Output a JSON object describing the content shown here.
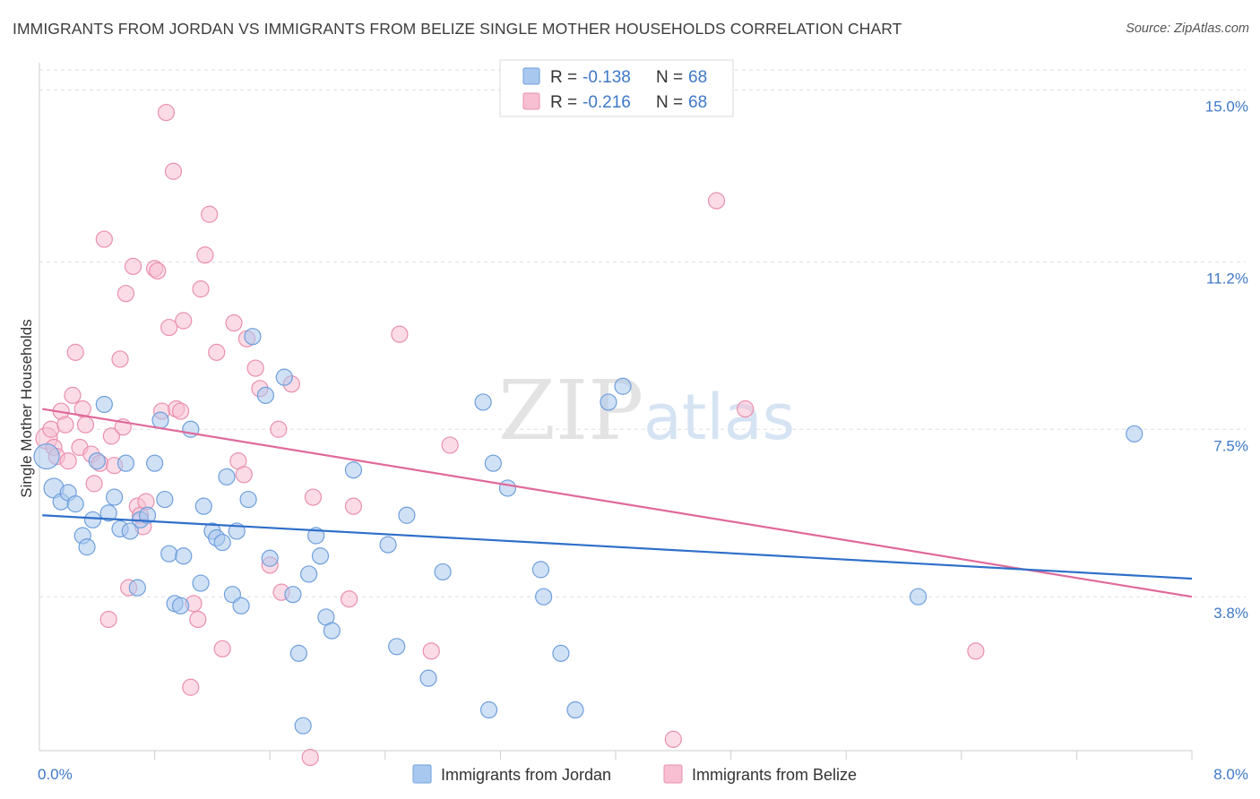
{
  "header": {
    "title": "IMMIGRANTS FROM JORDAN VS IMMIGRANTS FROM BELIZE SINGLE MOTHER HOUSEHOLDS CORRELATION CHART",
    "source": "Source: ZipAtlas.com"
  },
  "watermark": {
    "zip": "ZIP",
    "atlas": "atlas"
  },
  "colors": {
    "jordan_fill": "#a9c8ef",
    "jordan_stroke": "#6f9fdc",
    "jordan_line": "#2f6fc9",
    "belize_fill": "#f7bfd1",
    "belize_stroke": "#ea8fae",
    "belize_line": "#e0699a",
    "axis_text": "#3e78c8",
    "grid": "#dddddd"
  },
  "legend": {
    "r_label": "R =",
    "n_label": "N =",
    "entries": [
      {
        "r": "-0.138",
        "n": "68"
      },
      {
        "r": "-0.216",
        "n": "68"
      }
    ]
  },
  "chart_data": {
    "type": "scatter",
    "xlabel": "",
    "ylabel": "Single Mother Households",
    "xlim": [
      0,
      8.0
    ],
    "ylim": [
      0.4,
      15.6
    ],
    "x_tick_labels": [
      "0.0%",
      "8.0%"
    ],
    "y_ticks": [
      3.8,
      7.5,
      11.2,
      15.0
    ],
    "y_tick_labels": [
      "3.8%",
      "7.5%",
      "11.2%",
      "15.0%"
    ],
    "grid": true,
    "legend_position": "top-center",
    "series": [
      {
        "name": "Immigrants from Jordan",
        "trend": [
          [
            0.02,
            5.6
          ],
          [
            8.0,
            4.2
          ]
        ],
        "points": [
          [
            0.05,
            6.9,
            14
          ],
          [
            0.1,
            6.2,
            11
          ],
          [
            0.15,
            5.9,
            9
          ],
          [
            0.2,
            6.1,
            9
          ],
          [
            0.25,
            5.85,
            9
          ],
          [
            0.3,
            5.15,
            9
          ],
          [
            0.33,
            4.9,
            9
          ],
          [
            0.37,
            5.5,
            9
          ],
          [
            0.4,
            6.8,
            9
          ],
          [
            0.45,
            8.05,
            9
          ],
          [
            0.48,
            5.65,
            9
          ],
          [
            0.52,
            6.0,
            9
          ],
          [
            0.56,
            5.3,
            9
          ],
          [
            0.6,
            6.75,
            9
          ],
          [
            0.63,
            5.25,
            9
          ],
          [
            0.68,
            4.0,
            9
          ],
          [
            0.7,
            5.5,
            9
          ],
          [
            0.75,
            5.6,
            9
          ],
          [
            0.8,
            6.75,
            9
          ],
          [
            0.84,
            7.7,
            9
          ],
          [
            0.87,
            5.95,
            9
          ],
          [
            0.9,
            4.75,
            9
          ],
          [
            0.94,
            3.65,
            9
          ],
          [
            0.98,
            3.6,
            9
          ],
          [
            1.0,
            4.7,
            9
          ],
          [
            1.05,
            7.5,
            9
          ],
          [
            1.12,
            4.1,
            9
          ],
          [
            1.14,
            5.8,
            9
          ],
          [
            1.2,
            5.25,
            9
          ],
          [
            1.23,
            5.1,
            9
          ],
          [
            1.27,
            5.0,
            9
          ],
          [
            1.3,
            6.45,
            9
          ],
          [
            1.34,
            3.85,
            9
          ],
          [
            1.37,
            5.25,
            9
          ],
          [
            1.4,
            3.6,
            9
          ],
          [
            1.45,
            5.95,
            9
          ],
          [
            1.48,
            9.55,
            9
          ],
          [
            1.57,
            8.25,
            9
          ],
          [
            1.6,
            4.65,
            9
          ],
          [
            1.7,
            8.65,
            9
          ],
          [
            1.76,
            3.85,
            9
          ],
          [
            1.8,
            2.55,
            9
          ],
          [
            1.83,
            0.95,
            9
          ],
          [
            1.87,
            4.3,
            9
          ],
          [
            1.92,
            5.15,
            9
          ],
          [
            1.95,
            4.7,
            9
          ],
          [
            1.99,
            3.35,
            9
          ],
          [
            2.03,
            3.05,
            9
          ],
          [
            2.18,
            6.6,
            9
          ],
          [
            2.42,
            4.95,
            9
          ],
          [
            2.48,
            2.7,
            9
          ],
          [
            2.55,
            5.6,
            9
          ],
          [
            2.7,
            2.0,
            9
          ],
          [
            2.8,
            4.35,
            9
          ],
          [
            3.08,
            8.1,
            9
          ],
          [
            3.12,
            1.3,
            9
          ],
          [
            3.15,
            6.75,
            9
          ],
          [
            3.25,
            6.2,
            9
          ],
          [
            3.48,
            4.4,
            9
          ],
          [
            3.5,
            3.8,
            9
          ],
          [
            3.62,
            2.55,
            9
          ],
          [
            3.72,
            1.3,
            9
          ],
          [
            3.95,
            8.1,
            9
          ],
          [
            4.05,
            8.45,
            9
          ],
          [
            6.1,
            3.8,
            9
          ],
          [
            7.6,
            7.4,
            9
          ]
        ]
      },
      {
        "name": "Immigrants from Belize",
        "trend": [
          [
            0.02,
            7.95
          ],
          [
            8.0,
            3.8
          ]
        ],
        "points": [
          [
            0.05,
            7.3,
            12
          ],
          [
            0.08,
            7.5,
            9
          ],
          [
            0.1,
            7.1,
            9
          ],
          [
            0.12,
            6.9,
            9
          ],
          [
            0.15,
            7.9,
            9
          ],
          [
            0.18,
            7.6,
            9
          ],
          [
            0.2,
            6.8,
            9
          ],
          [
            0.23,
            8.25,
            9
          ],
          [
            0.25,
            9.2,
            9
          ],
          [
            0.28,
            7.1,
            9
          ],
          [
            0.3,
            7.95,
            9
          ],
          [
            0.32,
            7.6,
            9
          ],
          [
            0.36,
            6.95,
            9
          ],
          [
            0.38,
            6.3,
            9
          ],
          [
            0.42,
            6.75,
            9
          ],
          [
            0.45,
            11.7,
            9
          ],
          [
            0.48,
            3.3,
            9
          ],
          [
            0.5,
            7.35,
            9
          ],
          [
            0.52,
            6.7,
            9
          ],
          [
            0.56,
            9.05,
            9
          ],
          [
            0.58,
            7.55,
            9
          ],
          [
            0.6,
            10.5,
            9
          ],
          [
            0.62,
            4.0,
            9
          ],
          [
            0.65,
            11.1,
            9
          ],
          [
            0.68,
            5.8,
            9
          ],
          [
            0.7,
            5.6,
            9
          ],
          [
            0.72,
            5.35,
            9
          ],
          [
            0.74,
            5.9,
            9
          ],
          [
            0.8,
            11.05,
            9
          ],
          [
            0.82,
            11.0,
            9
          ],
          [
            0.85,
            7.9,
            9
          ],
          [
            0.88,
            14.5,
            9
          ],
          [
            0.9,
            9.75,
            9
          ],
          [
            0.93,
            13.2,
            9
          ],
          [
            0.95,
            7.95,
            9
          ],
          [
            0.98,
            7.9,
            9
          ],
          [
            1.0,
            9.9,
            9
          ],
          [
            1.05,
            1.8,
            9
          ],
          [
            1.07,
            3.65,
            9
          ],
          [
            1.1,
            3.3,
            9
          ],
          [
            1.12,
            10.6,
            9
          ],
          [
            1.15,
            11.35,
            9
          ],
          [
            1.18,
            12.25,
            9
          ],
          [
            1.23,
            9.2,
            9
          ],
          [
            1.27,
            2.65,
            9
          ],
          [
            1.35,
            9.85,
            9
          ],
          [
            1.38,
            6.8,
            9
          ],
          [
            1.42,
            6.5,
            9
          ],
          [
            1.44,
            9.5,
            9
          ],
          [
            1.5,
            8.85,
            9
          ],
          [
            1.53,
            8.4,
            9
          ],
          [
            1.6,
            4.5,
            9
          ],
          [
            1.66,
            7.5,
            9
          ],
          [
            1.68,
            3.9,
            9
          ],
          [
            1.75,
            8.5,
            9
          ],
          [
            1.88,
            0.25,
            9
          ],
          [
            1.9,
            6.0,
            9
          ],
          [
            2.15,
            3.75,
            9
          ],
          [
            2.18,
            5.8,
            9
          ],
          [
            2.5,
            9.6,
            9
          ],
          [
            2.72,
            2.6,
            9
          ],
          [
            2.85,
            7.15,
            9
          ],
          [
            4.4,
            0.65,
            9
          ],
          [
            4.7,
            12.55,
            9
          ],
          [
            4.9,
            7.95,
            9
          ],
          [
            6.5,
            2.6,
            9
          ]
        ]
      }
    ]
  },
  "bottom_legend": [
    {
      "label": "Immigrants from Jordan"
    },
    {
      "label": "Immigrants from Belize"
    }
  ]
}
